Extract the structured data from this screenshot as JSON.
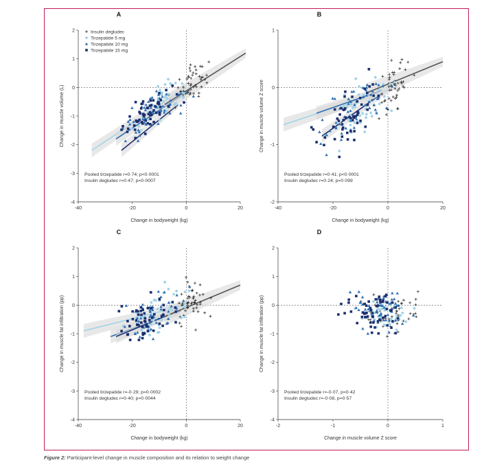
{
  "caption": {
    "figure_label": "Figure 2:",
    "text": " Participant-level change in muscle composition and its relation to weight change"
  },
  "colors": {
    "insulin": "#222222",
    "tz5": "#9fd3e8",
    "tz10": "#2f6fb0",
    "tz15": "#1c2f6e",
    "frame": "#c2185b",
    "fit_pooled": "#4a6fb0",
    "fit_insulin": "#555555",
    "band": "#d9d9d9"
  },
  "legend": [
    {
      "symbol": "plus",
      "label": "Insulin degludec",
      "color_key": "insulin"
    },
    {
      "symbol": "circle",
      "label": "Tirzepatide 5 mg",
      "color_key": "tz5"
    },
    {
      "symbol": "triangle",
      "label": "Tirzepatide 10 mg",
      "color_key": "tz10"
    },
    {
      "symbol": "square",
      "label": "Tirzepatide 15 mg",
      "color_key": "tz15"
    }
  ],
  "chart_data": [
    {
      "panel": "A",
      "type": "scatter",
      "xlabel": "Change in bodyweight (kg)",
      "ylabel": "Change in muscle volume (L)",
      "xlim": [
        -40,
        20
      ],
      "ylim": [
        -4,
        2
      ],
      "xticks": [
        "-40",
        "-20",
        "0",
        "20"
      ],
      "yticks": [
        "-4",
        "-3",
        "-2",
        "-1",
        "0",
        "1",
        "2"
      ],
      "legend": true,
      "notes": [
        "Pooled tirzepatide r=0·74; p<0·0001",
        "Insulin degludec r=0·47; p=0·0007"
      ],
      "fits": [
        {
          "group": "pooled_tz5",
          "x": [
            -35,
            0
          ],
          "y": [
            -2.2,
            0
          ]
        },
        {
          "group": "pooled_tz10",
          "x": [
            -26,
            -2
          ],
          "y": [
            -1.8,
            -0.3
          ]
        },
        {
          "group": "pooled_tz15",
          "x": [
            -24,
            -3
          ],
          "y": [
            -2.2,
            -0.6
          ]
        },
        {
          "group": "insulin",
          "x": [
            -8,
            22
          ],
          "y": [
            -0.6,
            1.2
          ]
        }
      ],
      "seed": 11
    },
    {
      "panel": "B",
      "type": "scatter",
      "xlabel": "Change in bodyweight (kg)",
      "ylabel": "Change in muscle volume Z score",
      "xlim": [
        -40,
        20
      ],
      "ylim": [
        -2,
        1
      ],
      "xticks": [
        "-40",
        "-20",
        "0",
        "20"
      ],
      "yticks": [
        "-2",
        "-1",
        "0",
        "1"
      ],
      "legend": false,
      "notes": [
        "Pooled tirzepatide r=0·41; p<0·0001",
        "Insulin degludec r=0·24; p=0·099"
      ],
      "fits": [
        {
          "group": "pooled_tz5",
          "x": [
            -38,
            0
          ],
          "y": [
            -0.65,
            -0.05
          ]
        },
        {
          "group": "pooled_tz10",
          "x": [
            -26,
            -2
          ],
          "y": [
            -0.45,
            -0.05
          ]
        },
        {
          "group": "pooled_tz15",
          "x": [
            -24,
            -2
          ],
          "y": [
            -0.85,
            -0.1
          ]
        },
        {
          "group": "insulin",
          "x": [
            -8,
            20
          ],
          "y": [
            -0.1,
            0.45
          ]
        }
      ],
      "seed": 23
    },
    {
      "panel": "C",
      "type": "scatter",
      "xlabel": "Change in bodyweight (kg)",
      "ylabel": "Change in muscle fat infiltration (pp)",
      "xlim": [
        -40,
        20
      ],
      "ylim": [
        -4,
        2
      ],
      "xticks": [
        "-40",
        "-20",
        "0",
        "20"
      ],
      "yticks": [
        "-4",
        "-3",
        "-2",
        "-1",
        "0",
        "1",
        "2"
      ],
      "legend": false,
      "notes": [
        "Pooled tirzepatide r=-0·29; p=0·0002",
        "Insulin degludec r=0·40; p=0·0044"
      ],
      "fits": [
        {
          "group": "pooled_tz5",
          "x": [
            -38,
            0
          ],
          "y": [
            -0.9,
            0
          ]
        },
        {
          "group": "pooled_tz10",
          "x": [
            -28,
            -2
          ],
          "y": [
            -1.1,
            -0.2
          ]
        },
        {
          "group": "pooled_tz15",
          "x": [
            -26,
            -3
          ],
          "y": [
            -1.1,
            -0.2
          ]
        },
        {
          "group": "insulin",
          "x": [
            -8,
            20
          ],
          "y": [
            -0.4,
            0.7
          ]
        }
      ],
      "seed": 37
    },
    {
      "panel": "D",
      "type": "scatter",
      "xlabel": "Change in muscle volume Z score",
      "ylabel": "Change in muscle fat infiltration (pp)",
      "xlim": [
        -2,
        1
      ],
      "ylim": [
        -4,
        2
      ],
      "xticks": [
        "-2",
        "-1",
        "0",
        "1"
      ],
      "yticks": [
        "-4",
        "-3",
        "-2",
        "-1",
        "0",
        "1",
        "2"
      ],
      "legend": false,
      "notes": [
        "Pooled tirzepatide r=-0·07, p=0·42",
        "Insulin degludec r=-0·08, p=0·57"
      ],
      "fits": [],
      "seed": 53
    }
  ]
}
